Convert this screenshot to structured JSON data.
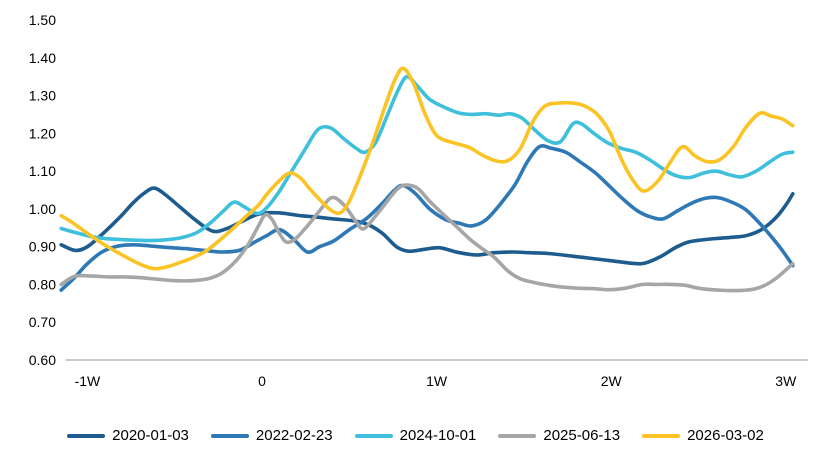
{
  "chart_data": {
    "type": "line",
    "title": "",
    "xlabel": "",
    "ylabel": "",
    "ylim": [
      0.6,
      1.5
    ],
    "xlim_weeks": [
      -1.15,
      3.05
    ],
    "grid": false,
    "legend_position": "bottom",
    "axis_line_color": "#c9c9c9",
    "y_ticks": [
      "1.50",
      "1.40",
      "1.30",
      "1.20",
      "1.10",
      "1.00",
      "0.90",
      "0.80",
      "0.70",
      "0.60"
    ],
    "y_tick_values": [
      1.5,
      1.4,
      1.3,
      1.2,
      1.1,
      1.0,
      0.9,
      0.8,
      0.7,
      0.6
    ],
    "x_ticks": [
      "-1W",
      "0",
      "1W",
      "2W",
      "3W"
    ],
    "x_tick_values": [
      -1,
      0,
      1,
      2,
      3
    ],
    "series": [
      {
        "name": "2020-01-03",
        "color": "#1e5c90",
        "points": [
          [
            -1.15,
            0.905
          ],
          [
            -1.07,
            0.89
          ],
          [
            -1.0,
            0.9
          ],
          [
            -0.91,
            0.935
          ],
          [
            -0.82,
            0.975
          ],
          [
            -0.74,
            1.015
          ],
          [
            -0.68,
            1.04
          ],
          [
            -0.62,
            1.055
          ],
          [
            -0.56,
            1.04
          ],
          [
            -0.47,
            1.005
          ],
          [
            -0.38,
            0.97
          ],
          [
            -0.31,
            0.947
          ],
          [
            -0.26,
            0.94
          ],
          [
            -0.19,
            0.95
          ],
          [
            -0.11,
            0.968
          ],
          [
            -0.03,
            0.985
          ],
          [
            0.05,
            0.99
          ],
          [
            0.13,
            0.988
          ],
          [
            0.22,
            0.982
          ],
          [
            0.32,
            0.978
          ],
          [
            0.42,
            0.973
          ],
          [
            0.53,
            0.968
          ],
          [
            0.61,
            0.958
          ],
          [
            0.69,
            0.935
          ],
          [
            0.77,
            0.9
          ],
          [
            0.84,
            0.888
          ],
          [
            0.93,
            0.893
          ],
          [
            1.02,
            0.897
          ],
          [
            1.12,
            0.885
          ],
          [
            1.23,
            0.878
          ],
          [
            1.33,
            0.884
          ],
          [
            1.44,
            0.886
          ],
          [
            1.53,
            0.884
          ],
          [
            1.64,
            0.882
          ],
          [
            1.74,
            0.877
          ],
          [
            1.83,
            0.872
          ],
          [
            1.94,
            0.866
          ],
          [
            2.03,
            0.861
          ],
          [
            2.12,
            0.856
          ],
          [
            2.19,
            0.856
          ],
          [
            2.28,
            0.873
          ],
          [
            2.37,
            0.898
          ],
          [
            2.44,
            0.912
          ],
          [
            2.52,
            0.918
          ],
          [
            2.61,
            0.922
          ],
          [
            2.7,
            0.925
          ],
          [
            2.78,
            0.93
          ],
          [
            2.86,
            0.945
          ],
          [
            2.94,
            0.975
          ],
          [
            3.0,
            1.01
          ],
          [
            3.04,
            1.04
          ]
        ]
      },
      {
        "name": "2022-02-23",
        "color": "#2e79b5",
        "points": [
          [
            -1.15,
            0.785
          ],
          [
            -1.08,
            0.815
          ],
          [
            -1.0,
            0.855
          ],
          [
            -0.92,
            0.885
          ],
          [
            -0.84,
            0.9
          ],
          [
            -0.74,
            0.905
          ],
          [
            -0.64,
            0.902
          ],
          [
            -0.54,
            0.898
          ],
          [
            -0.44,
            0.895
          ],
          [
            -0.33,
            0.89
          ],
          [
            -0.23,
            0.886
          ],
          [
            -0.13,
            0.89
          ],
          [
            -0.05,
            0.91
          ],
          [
            0.03,
            0.93
          ],
          [
            0.1,
            0.945
          ],
          [
            0.18,
            0.92
          ],
          [
            0.26,
            0.886
          ],
          [
            0.33,
            0.9
          ],
          [
            0.41,
            0.915
          ],
          [
            0.5,
            0.945
          ],
          [
            0.6,
            0.975
          ],
          [
            0.69,
            1.015
          ],
          [
            0.76,
            1.05
          ],
          [
            0.81,
            1.062
          ],
          [
            0.88,
            1.04
          ],
          [
            0.96,
            1.0
          ],
          [
            1.05,
            0.972
          ],
          [
            1.13,
            0.962
          ],
          [
            1.2,
            0.955
          ],
          [
            1.28,
            0.97
          ],
          [
            1.36,
            1.01
          ],
          [
            1.45,
            1.065
          ],
          [
            1.52,
            1.125
          ],
          [
            1.59,
            1.165
          ],
          [
            1.66,
            1.16
          ],
          [
            1.74,
            1.15
          ],
          [
            1.82,
            1.125
          ],
          [
            1.91,
            1.095
          ],
          [
            1.99,
            1.06
          ],
          [
            2.07,
            1.025
          ],
          [
            2.15,
            0.995
          ],
          [
            2.23,
            0.978
          ],
          [
            2.3,
            0.974
          ],
          [
            2.38,
            0.995
          ],
          [
            2.46,
            1.015
          ],
          [
            2.54,
            1.028
          ],
          [
            2.61,
            1.03
          ],
          [
            2.69,
            1.018
          ],
          [
            2.77,
            0.998
          ],
          [
            2.85,
            0.962
          ],
          [
            2.92,
            0.925
          ],
          [
            2.98,
            0.89
          ],
          [
            3.04,
            0.85
          ]
        ]
      },
      {
        "name": "2024-10-01",
        "color": "#3ec0dc",
        "points": [
          [
            -1.15,
            0.948
          ],
          [
            -1.05,
            0.935
          ],
          [
            -0.96,
            0.925
          ],
          [
            -0.86,
            0.92
          ],
          [
            -0.76,
            0.918
          ],
          [
            -0.65,
            0.916
          ],
          [
            -0.56,
            0.918
          ],
          [
            -0.46,
            0.924
          ],
          [
            -0.37,
            0.938
          ],
          [
            -0.29,
            0.965
          ],
          [
            -0.22,
            0.995
          ],
          [
            -0.16,
            1.018
          ],
          [
            -0.1,
            1.005
          ],
          [
            -0.03,
            0.988
          ],
          [
            0.02,
            1.0
          ],
          [
            0.09,
            1.04
          ],
          [
            0.17,
            1.1
          ],
          [
            0.25,
            1.16
          ],
          [
            0.32,
            1.21
          ],
          [
            0.39,
            1.215
          ],
          [
            0.47,
            1.185
          ],
          [
            0.54,
            1.16
          ],
          [
            0.59,
            1.15
          ],
          [
            0.65,
            1.175
          ],
          [
            0.72,
            1.25
          ],
          [
            0.78,
            1.315
          ],
          [
            0.83,
            1.35
          ],
          [
            0.89,
            1.325
          ],
          [
            0.96,
            1.29
          ],
          [
            1.04,
            1.27
          ],
          [
            1.12,
            1.255
          ],
          [
            1.2,
            1.25
          ],
          [
            1.28,
            1.252
          ],
          [
            1.36,
            1.248
          ],
          [
            1.42,
            1.252
          ],
          [
            1.49,
            1.24
          ],
          [
            1.56,
            1.21
          ],
          [
            1.64,
            1.18
          ],
          [
            1.71,
            1.178
          ],
          [
            1.78,
            1.225
          ],
          [
            1.83,
            1.225
          ],
          [
            1.9,
            1.2
          ],
          [
            1.98,
            1.175
          ],
          [
            2.06,
            1.16
          ],
          [
            2.14,
            1.15
          ],
          [
            2.22,
            1.13
          ],
          [
            2.3,
            1.105
          ],
          [
            2.37,
            1.088
          ],
          [
            2.45,
            1.083
          ],
          [
            2.53,
            1.095
          ],
          [
            2.6,
            1.1
          ],
          [
            2.68,
            1.09
          ],
          [
            2.75,
            1.085
          ],
          [
            2.83,
            1.1
          ],
          [
            2.91,
            1.125
          ],
          [
            2.98,
            1.145
          ],
          [
            3.04,
            1.15
          ]
        ]
      },
      {
        "name": "2025-06-13",
        "color": "#a6a6a6",
        "points": [
          [
            -1.15,
            0.8
          ],
          [
            -1.07,
            0.822
          ],
          [
            -0.97,
            0.822
          ],
          [
            -0.88,
            0.82
          ],
          [
            -0.79,
            0.82
          ],
          [
            -0.7,
            0.818
          ],
          [
            -0.6,
            0.814
          ],
          [
            -0.5,
            0.81
          ],
          [
            -0.4,
            0.81
          ],
          [
            -0.31,
            0.815
          ],
          [
            -0.23,
            0.83
          ],
          [
            -0.15,
            0.862
          ],
          [
            -0.08,
            0.905
          ],
          [
            -0.02,
            0.955
          ],
          [
            0.02,
            0.985
          ],
          [
            0.06,
            0.97
          ],
          [
            0.1,
            0.935
          ],
          [
            0.14,
            0.912
          ],
          [
            0.19,
            0.92
          ],
          [
            0.26,
            0.955
          ],
          [
            0.33,
            0.995
          ],
          [
            0.4,
            1.03
          ],
          [
            0.47,
            1.01
          ],
          [
            0.54,
            0.965
          ],
          [
            0.58,
            0.947
          ],
          [
            0.64,
            0.975
          ],
          [
            0.7,
            1.01
          ],
          [
            0.77,
            1.05
          ],
          [
            0.82,
            1.063
          ],
          [
            0.89,
            1.055
          ],
          [
            0.96,
            1.02
          ],
          [
            1.04,
            0.985
          ],
          [
            1.11,
            0.955
          ],
          [
            1.19,
            0.92
          ],
          [
            1.26,
            0.895
          ],
          [
            1.33,
            0.872
          ],
          [
            1.41,
            0.835
          ],
          [
            1.48,
            0.815
          ],
          [
            1.56,
            0.805
          ],
          [
            1.64,
            0.798
          ],
          [
            1.72,
            0.793
          ],
          [
            1.81,
            0.79
          ],
          [
            1.9,
            0.789
          ],
          [
            1.99,
            0.786
          ],
          [
            2.08,
            0.79
          ],
          [
            2.18,
            0.8
          ],
          [
            2.26,
            0.8
          ],
          [
            2.34,
            0.8
          ],
          [
            2.42,
            0.798
          ],
          [
            2.5,
            0.79
          ],
          [
            2.58,
            0.786
          ],
          [
            2.66,
            0.784
          ],
          [
            2.74,
            0.784
          ],
          [
            2.82,
            0.788
          ],
          [
            2.89,
            0.8
          ],
          [
            2.96,
            0.822
          ],
          [
            3.04,
            0.855
          ]
        ]
      },
      {
        "name": "2026-03-02",
        "color": "#fcc324",
        "points": [
          [
            -1.15,
            0.982
          ],
          [
            -1.08,
            0.962
          ],
          [
            -1.0,
            0.935
          ],
          [
            -0.92,
            0.91
          ],
          [
            -0.84,
            0.888
          ],
          [
            -0.76,
            0.868
          ],
          [
            -0.69,
            0.852
          ],
          [
            -0.62,
            0.842
          ],
          [
            -0.55,
            0.846
          ],
          [
            -0.47,
            0.858
          ],
          [
            -0.39,
            0.872
          ],
          [
            -0.31,
            0.892
          ],
          [
            -0.23,
            0.922
          ],
          [
            -0.15,
            0.955
          ],
          [
            -0.08,
            0.985
          ],
          [
            -0.02,
            1.01
          ],
          [
            0.03,
            1.04
          ],
          [
            0.1,
            1.075
          ],
          [
            0.16,
            1.095
          ],
          [
            0.22,
            1.082
          ],
          [
            0.27,
            1.055
          ],
          [
            0.34,
            1.02
          ],
          [
            0.4,
            0.995
          ],
          [
            0.45,
            0.99
          ],
          [
            0.5,
            1.02
          ],
          [
            0.56,
            1.085
          ],
          [
            0.63,
            1.17
          ],
          [
            0.7,
            1.265
          ],
          [
            0.76,
            1.34
          ],
          [
            0.81,
            1.372
          ],
          [
            0.87,
            1.33
          ],
          [
            0.93,
            1.255
          ],
          [
            0.99,
            1.2
          ],
          [
            1.04,
            1.183
          ],
          [
            1.12,
            1.172
          ],
          [
            1.19,
            1.162
          ],
          [
            1.26,
            1.143
          ],
          [
            1.34,
            1.127
          ],
          [
            1.41,
            1.128
          ],
          [
            1.48,
            1.16
          ],
          [
            1.55,
            1.23
          ],
          [
            1.62,
            1.272
          ],
          [
            1.7,
            1.28
          ],
          [
            1.78,
            1.28
          ],
          [
            1.85,
            1.272
          ],
          [
            1.92,
            1.25
          ],
          [
            1.99,
            1.205
          ],
          [
            2.06,
            1.13
          ],
          [
            2.13,
            1.072
          ],
          [
            2.19,
            1.047
          ],
          [
            2.27,
            1.075
          ],
          [
            2.34,
            1.125
          ],
          [
            2.41,
            1.165
          ],
          [
            2.48,
            1.14
          ],
          [
            2.55,
            1.125
          ],
          [
            2.62,
            1.13
          ],
          [
            2.7,
            1.165
          ],
          [
            2.77,
            1.215
          ],
          [
            2.85,
            1.253
          ],
          [
            2.92,
            1.245
          ],
          [
            2.98,
            1.238
          ],
          [
            3.04,
            1.22
          ]
        ]
      }
    ]
  }
}
